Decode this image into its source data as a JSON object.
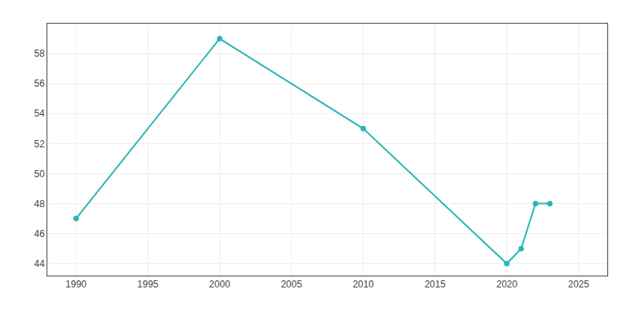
{
  "chart_data": {
    "type": "line",
    "x": [
      1990,
      2000,
      2010,
      2020,
      2021,
      2022,
      2023
    ],
    "values": [
      47,
      59,
      53,
      44,
      45,
      48,
      48
    ],
    "color": "#2ab5b5",
    "marker": "circle",
    "xlim": [
      1988,
      2027
    ],
    "ylim": [
      43.2,
      60.0
    ],
    "xticks": [
      1990,
      1995,
      2000,
      2005,
      2010,
      2015,
      2020,
      2025
    ],
    "yticks": [
      44,
      46,
      48,
      50,
      52,
      54,
      56,
      58
    ],
    "grid": true
  }
}
